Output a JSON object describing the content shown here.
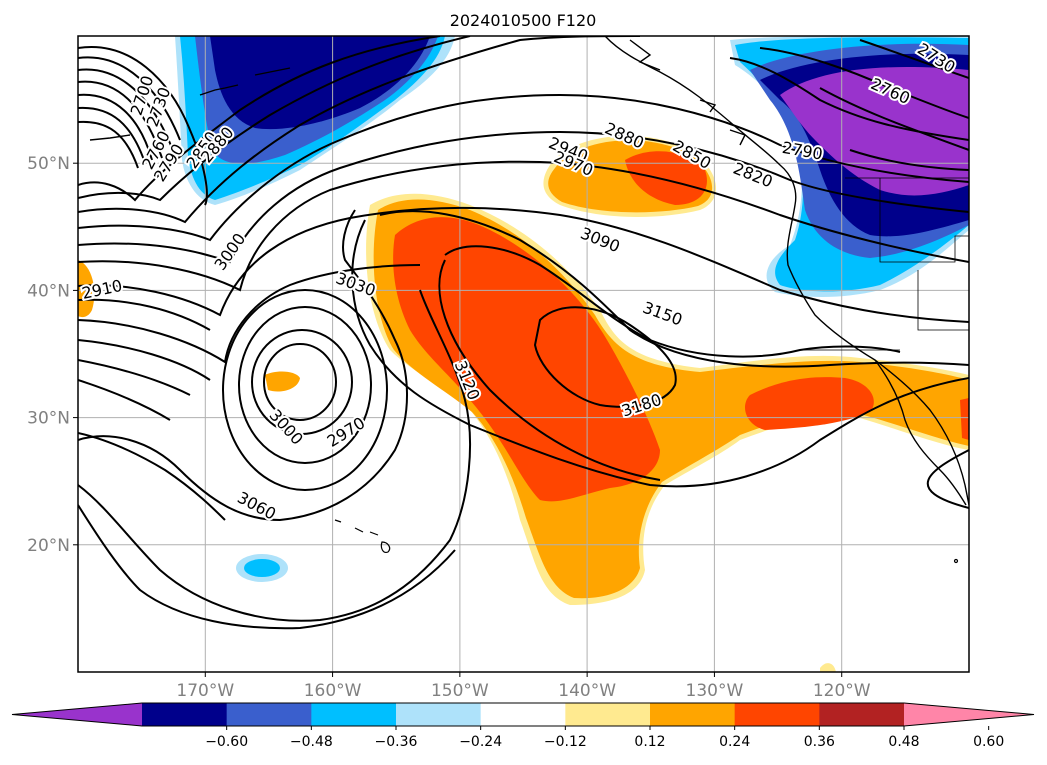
{
  "chart_data": {
    "type": "contour_map",
    "title": "2024010500 F120",
    "projection": "lat-lon",
    "xlim": [
      -180,
      -110
    ],
    "ylim": [
      10,
      60
    ],
    "grid": true,
    "x_ticks": [
      -170,
      -160,
      -150,
      -140,
      -130,
      -120
    ],
    "x_tick_labels": [
      "170°W",
      "160°W",
      "150°W",
      "140°W",
      "130°W",
      "120°W"
    ],
    "y_ticks": [
      20,
      30,
      40,
      50
    ],
    "y_tick_labels": [
      "20°N",
      "30°N",
      "40°N",
      "50°N"
    ],
    "contour_line_color": "#000000",
    "contour_labels": [
      {
        "text": "2700",
        "lon": -174.9,
        "lat": 55.3,
        "rot": -72
      },
      {
        "text": "2730",
        "lon": -173.6,
        "lat": 54.4,
        "rot": -70
      },
      {
        "text": "2760",
        "lon": -173.8,
        "lat": 51.0,
        "rot": -62
      },
      {
        "text": "2790",
        "lon": -172.8,
        "lat": 50.0,
        "rot": -58
      },
      {
        "text": "2850",
        "lon": -170.2,
        "lat": 51.0,
        "rot": -55
      },
      {
        "text": "2880",
        "lon": -169.0,
        "lat": 51.4,
        "rot": -50
      },
      {
        "text": "2910",
        "lon": -178.1,
        "lat": 40.0,
        "rot": -12
      },
      {
        "text": "3000",
        "lon": -168.0,
        "lat": 43.0,
        "rot": -55
      },
      {
        "text": "3030",
        "lon": -158.2,
        "lat": 40.4,
        "rot": 20
      },
      {
        "text": "3000",
        "lon": -163.7,
        "lat": 29.2,
        "rot": 48
      },
      {
        "text": "2970",
        "lon": -158.9,
        "lat": 28.8,
        "rot": -32
      },
      {
        "text": "3060",
        "lon": -166.0,
        "lat": 23.0,
        "rot": 28
      },
      {
        "text": "3120",
        "lon": -149.5,
        "lat": 32.9,
        "rot": 68
      },
      {
        "text": "3150",
        "lon": -134.1,
        "lat": 38.1,
        "rot": 20
      },
      {
        "text": "3180",
        "lon": -135.7,
        "lat": 30.9,
        "rot": -18
      },
      {
        "text": "3090",
        "lon": -139.0,
        "lat": 43.9,
        "rot": 22
      },
      {
        "text": "2940",
        "lon": -141.5,
        "lat": 51.0,
        "rot": 22
      },
      {
        "text": "2970",
        "lon": -141.1,
        "lat": 49.9,
        "rot": 22
      },
      {
        "text": "2880",
        "lon": -137.1,
        "lat": 52.1,
        "rot": 24
      },
      {
        "text": "2850",
        "lon": -131.8,
        "lat": 50.6,
        "rot": 30
      },
      {
        "text": "2820",
        "lon": -127.0,
        "lat": 49.0,
        "rot": 22
      },
      {
        "text": "2790",
        "lon": -123.1,
        "lat": 50.9,
        "rot": 10
      },
      {
        "text": "2760",
        "lon": -116.2,
        "lat": 55.6,
        "rot": 24
      },
      {
        "text": "2730",
        "lon": -112.6,
        "lat": 58.2,
        "rot": 32
      }
    ],
    "colorbar": {
      "orientation": "horizontal",
      "extend": "both",
      "levels": [
        -0.6,
        -0.48,
        -0.36,
        -0.24,
        -0.12,
        0.12,
        0.24,
        0.36,
        0.48,
        0.6
      ],
      "tick_labels": [
        "−0.60",
        "−0.48",
        "−0.36",
        "−0.24",
        "−0.12",
        "0.12",
        "0.24",
        "0.36",
        "0.48",
        "0.60"
      ],
      "colors": [
        "#9933cc",
        "#00008b",
        "#3a5fcd",
        "#00bfff",
        "#aee2fa",
        "#ffffff",
        "#ffea90",
        "#ffa500",
        "#ff4500",
        "#b22222",
        "#ff85a8"
      ]
    }
  }
}
